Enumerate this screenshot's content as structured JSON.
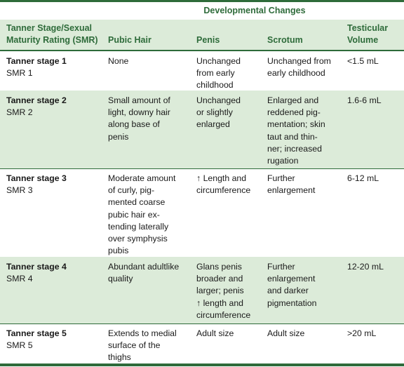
{
  "table": {
    "group_header": "Developmental Changes",
    "columns": {
      "stage": [
        "Tanner Stage/Sexual",
        "Maturity Rating (SMR)"
      ],
      "pubic_hair": "Pubic Hair",
      "penis": "Penis",
      "scrotum": "Scrotum",
      "testicular_volume": [
        "Testicular",
        "Volume"
      ]
    },
    "rows": [
      {
        "stage": "Tanner stage 1",
        "smr": "SMR 1",
        "pubic_hair": [
          "None"
        ],
        "penis": [
          "Unchanged",
          "from early",
          "childhood"
        ],
        "scrotum": [
          "Unchanged from",
          "early childhood"
        ],
        "volume": "<1.5 mL"
      },
      {
        "stage": "Tanner stage 2",
        "smr": "SMR 2",
        "pubic_hair": [
          "Small amount of",
          "light, downy hair",
          "along base of",
          "penis"
        ],
        "penis": [
          "Unchanged",
          "or slightly",
          "enlarged"
        ],
        "scrotum": [
          "Enlarged and",
          "reddened pig-",
          "mentation; skin",
          "taut and thin-",
          "ner; increased",
          "rugation"
        ],
        "volume": "1.6-6 mL"
      },
      {
        "stage": "Tanner stage 3",
        "smr": "SMR 3",
        "pubic_hair": [
          "Moderate amount",
          "of curly, pig-",
          "mented coarse",
          "pubic hair ex-",
          "tending laterally",
          "over symphysis",
          "pubis"
        ],
        "penis": [
          "↑ Length and",
          "circumference"
        ],
        "scrotum": [
          "Further",
          "enlargement"
        ],
        "volume": "6-12 mL"
      },
      {
        "stage": "Tanner stage 4",
        "smr": "SMR 4",
        "pubic_hair": [
          "Abundant adultlike",
          "quality"
        ],
        "penis": [
          "Glans penis",
          "broader and",
          "larger; penis",
          "↑ length and",
          "circumference"
        ],
        "scrotum": [
          "Further",
          "enlargement",
          "and darker",
          "pigmentation"
        ],
        "volume": "12-20 mL"
      },
      {
        "stage": "Tanner stage 5",
        "smr": "SMR 5",
        "pubic_hair": [
          "Extends to medial",
          "surface of the",
          "thighs"
        ],
        "penis": [
          "Adult size"
        ],
        "scrotum": [
          "Adult size"
        ],
        "volume": ">20 mL"
      }
    ]
  }
}
